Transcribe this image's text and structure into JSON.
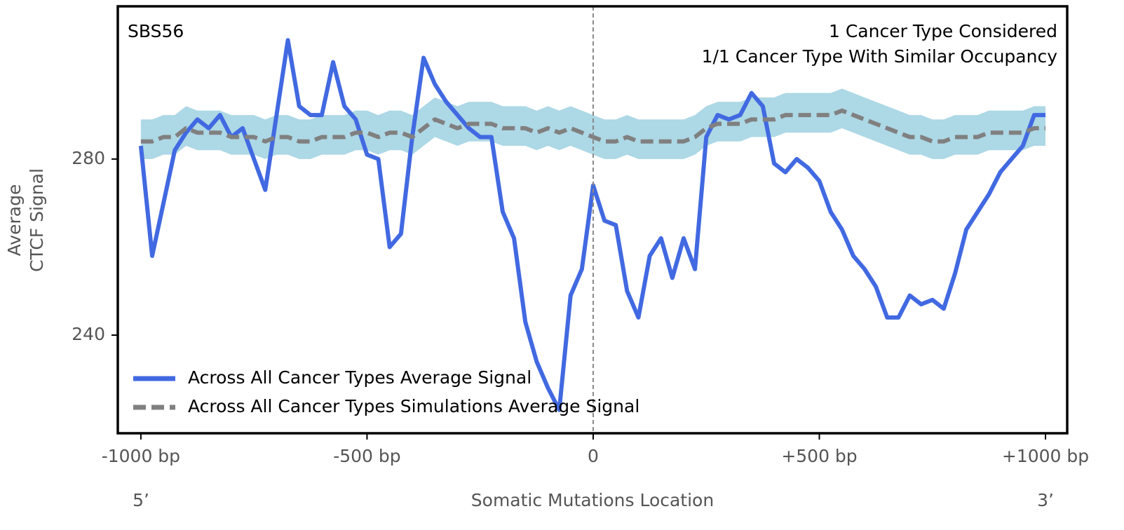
{
  "chart_data": {
    "type": "line",
    "title": "SBS56",
    "annotations": [
      "1 Cancer Type Considered",
      "1/1 Cancer Type With Similar Occupancy"
    ],
    "xlabel": "Somatic Mutations Location",
    "xlabel_left": "5’",
    "xlabel_right": "3’",
    "ylabel_lines": [
      "Average",
      "CTCF Signal"
    ],
    "xlim": [
      -1051,
      1048
    ],
    "ylim": [
      217.7,
      314.7
    ],
    "xticks": [
      {
        "value": -1000,
        "label": "-1000 bp"
      },
      {
        "value": -500,
        "label": "-500 bp"
      },
      0,
      {
        "value": 500,
        "label": "+500 bp"
      },
      {
        "value": 1000,
        "label": "+1000 bp"
      }
    ],
    "yticks": [
      240,
      280
    ],
    "vline": 0,
    "legend": "lower left",
    "x": [
      -1000,
      -975,
      -950,
      -925,
      -900,
      -875,
      -850,
      -825,
      -800,
      -775,
      -750,
      -725,
      -700,
      -675,
      -650,
      -625,
      -600,
      -575,
      -550,
      -525,
      -500,
      -475,
      -450,
      -425,
      -400,
      -375,
      -350,
      -325,
      -300,
      -275,
      -250,
      -225,
      -200,
      -175,
      -150,
      -125,
      -100,
      -75,
      -50,
      -25,
      0,
      25,
      50,
      75,
      100,
      125,
      150,
      175,
      200,
      225,
      250,
      275,
      300,
      325,
      350,
      375,
      400,
      425,
      450,
      475,
      500,
      525,
      550,
      575,
      600,
      625,
      650,
      675,
      700,
      725,
      750,
      775,
      800,
      825,
      850,
      875,
      900,
      925,
      950,
      975,
      1000
    ],
    "band": {
      "color": "#add8e6",
      "upper": [
        289,
        289,
        290,
        290,
        292,
        291,
        291,
        291,
        290,
        290,
        290,
        289,
        290,
        290,
        289,
        289,
        290,
        290,
        290,
        291,
        291,
        290,
        291,
        291,
        290,
        292,
        294,
        293,
        292,
        293,
        293,
        293,
        292,
        292,
        292,
        291,
        292,
        291,
        292,
        291,
        290,
        289,
        289,
        290,
        289,
        289,
        289,
        289,
        289,
        290,
        292,
        293,
        293,
        293,
        294,
        294,
        294,
        295,
        295,
        295,
        295,
        295,
        296,
        295,
        294,
        293,
        292,
        291,
        290,
        290,
        289,
        289,
        290,
        290,
        290,
        291,
        291,
        291,
        291,
        292,
        292
      ],
      "lower": [
        280,
        280,
        281,
        281,
        283,
        282,
        282,
        282,
        281,
        281,
        281,
        280,
        281,
        281,
        280,
        280,
        281,
        281,
        281,
        282,
        282,
        281,
        282,
        282,
        281,
        283,
        285,
        284,
        283,
        284,
        284,
        284,
        283,
        283,
        283,
        282,
        283,
        282,
        283,
        282,
        281,
        280,
        280,
        281,
        280,
        280,
        280,
        280,
        280,
        281,
        283,
        284,
        284,
        284,
        285,
        285,
        285,
        286,
        286,
        286,
        286,
        286,
        287,
        286,
        285,
        284,
        283,
        282,
        281,
        281,
        280,
        280,
        281,
        281,
        281,
        282,
        282,
        282,
        282,
        283,
        283
      ]
    },
    "series": [
      {
        "name": "Across All Cancer Types Average Signal",
        "color": "#4169e1",
        "dashed": false,
        "values": [
          283,
          258,
          270,
          282,
          286,
          289,
          287,
          290,
          285,
          287,
          280,
          273,
          290,
          307,
          292,
          290,
          290,
          302,
          292,
          289,
          281,
          280,
          260,
          263,
          285,
          303,
          297,
          293,
          290,
          287,
          285,
          285,
          268,
          262,
          243,
          234,
          228,
          223,
          249,
          255,
          274,
          266,
          265,
          250,
          244,
          258,
          262,
          253,
          262,
          255,
          285,
          290,
          289,
          290,
          295,
          292,
          279,
          277,
          280,
          278,
          275,
          268,
          264,
          258,
          255,
          251,
          244,
          244,
          249,
          247,
          248,
          246,
          254,
          264,
          268,
          272,
          277,
          280,
          283,
          290,
          290
        ]
      },
      {
        "name": "Across All Cancer Types Simulations Average Signal",
        "color": "#808080",
        "dashed": true,
        "values": [
          284,
          284,
          285,
          285,
          287,
          286,
          286,
          286,
          285,
          285,
          285,
          284,
          285,
          285,
          284,
          284,
          285,
          285,
          285,
          286,
          286,
          285,
          286,
          286,
          285,
          287,
          289,
          288,
          287,
          288,
          288,
          288,
          287,
          287,
          287,
          286,
          287,
          286,
          287,
          286,
          285,
          284,
          284,
          285,
          284,
          284,
          284,
          284,
          284,
          285,
          287,
          288,
          288,
          288,
          289,
          289,
          289,
          290,
          290,
          290,
          290,
          290,
          291,
          290,
          289,
          288,
          287,
          286,
          285,
          285,
          284,
          284,
          285,
          285,
          285,
          286,
          286,
          286,
          286,
          287,
          287
        ]
      }
    ]
  }
}
